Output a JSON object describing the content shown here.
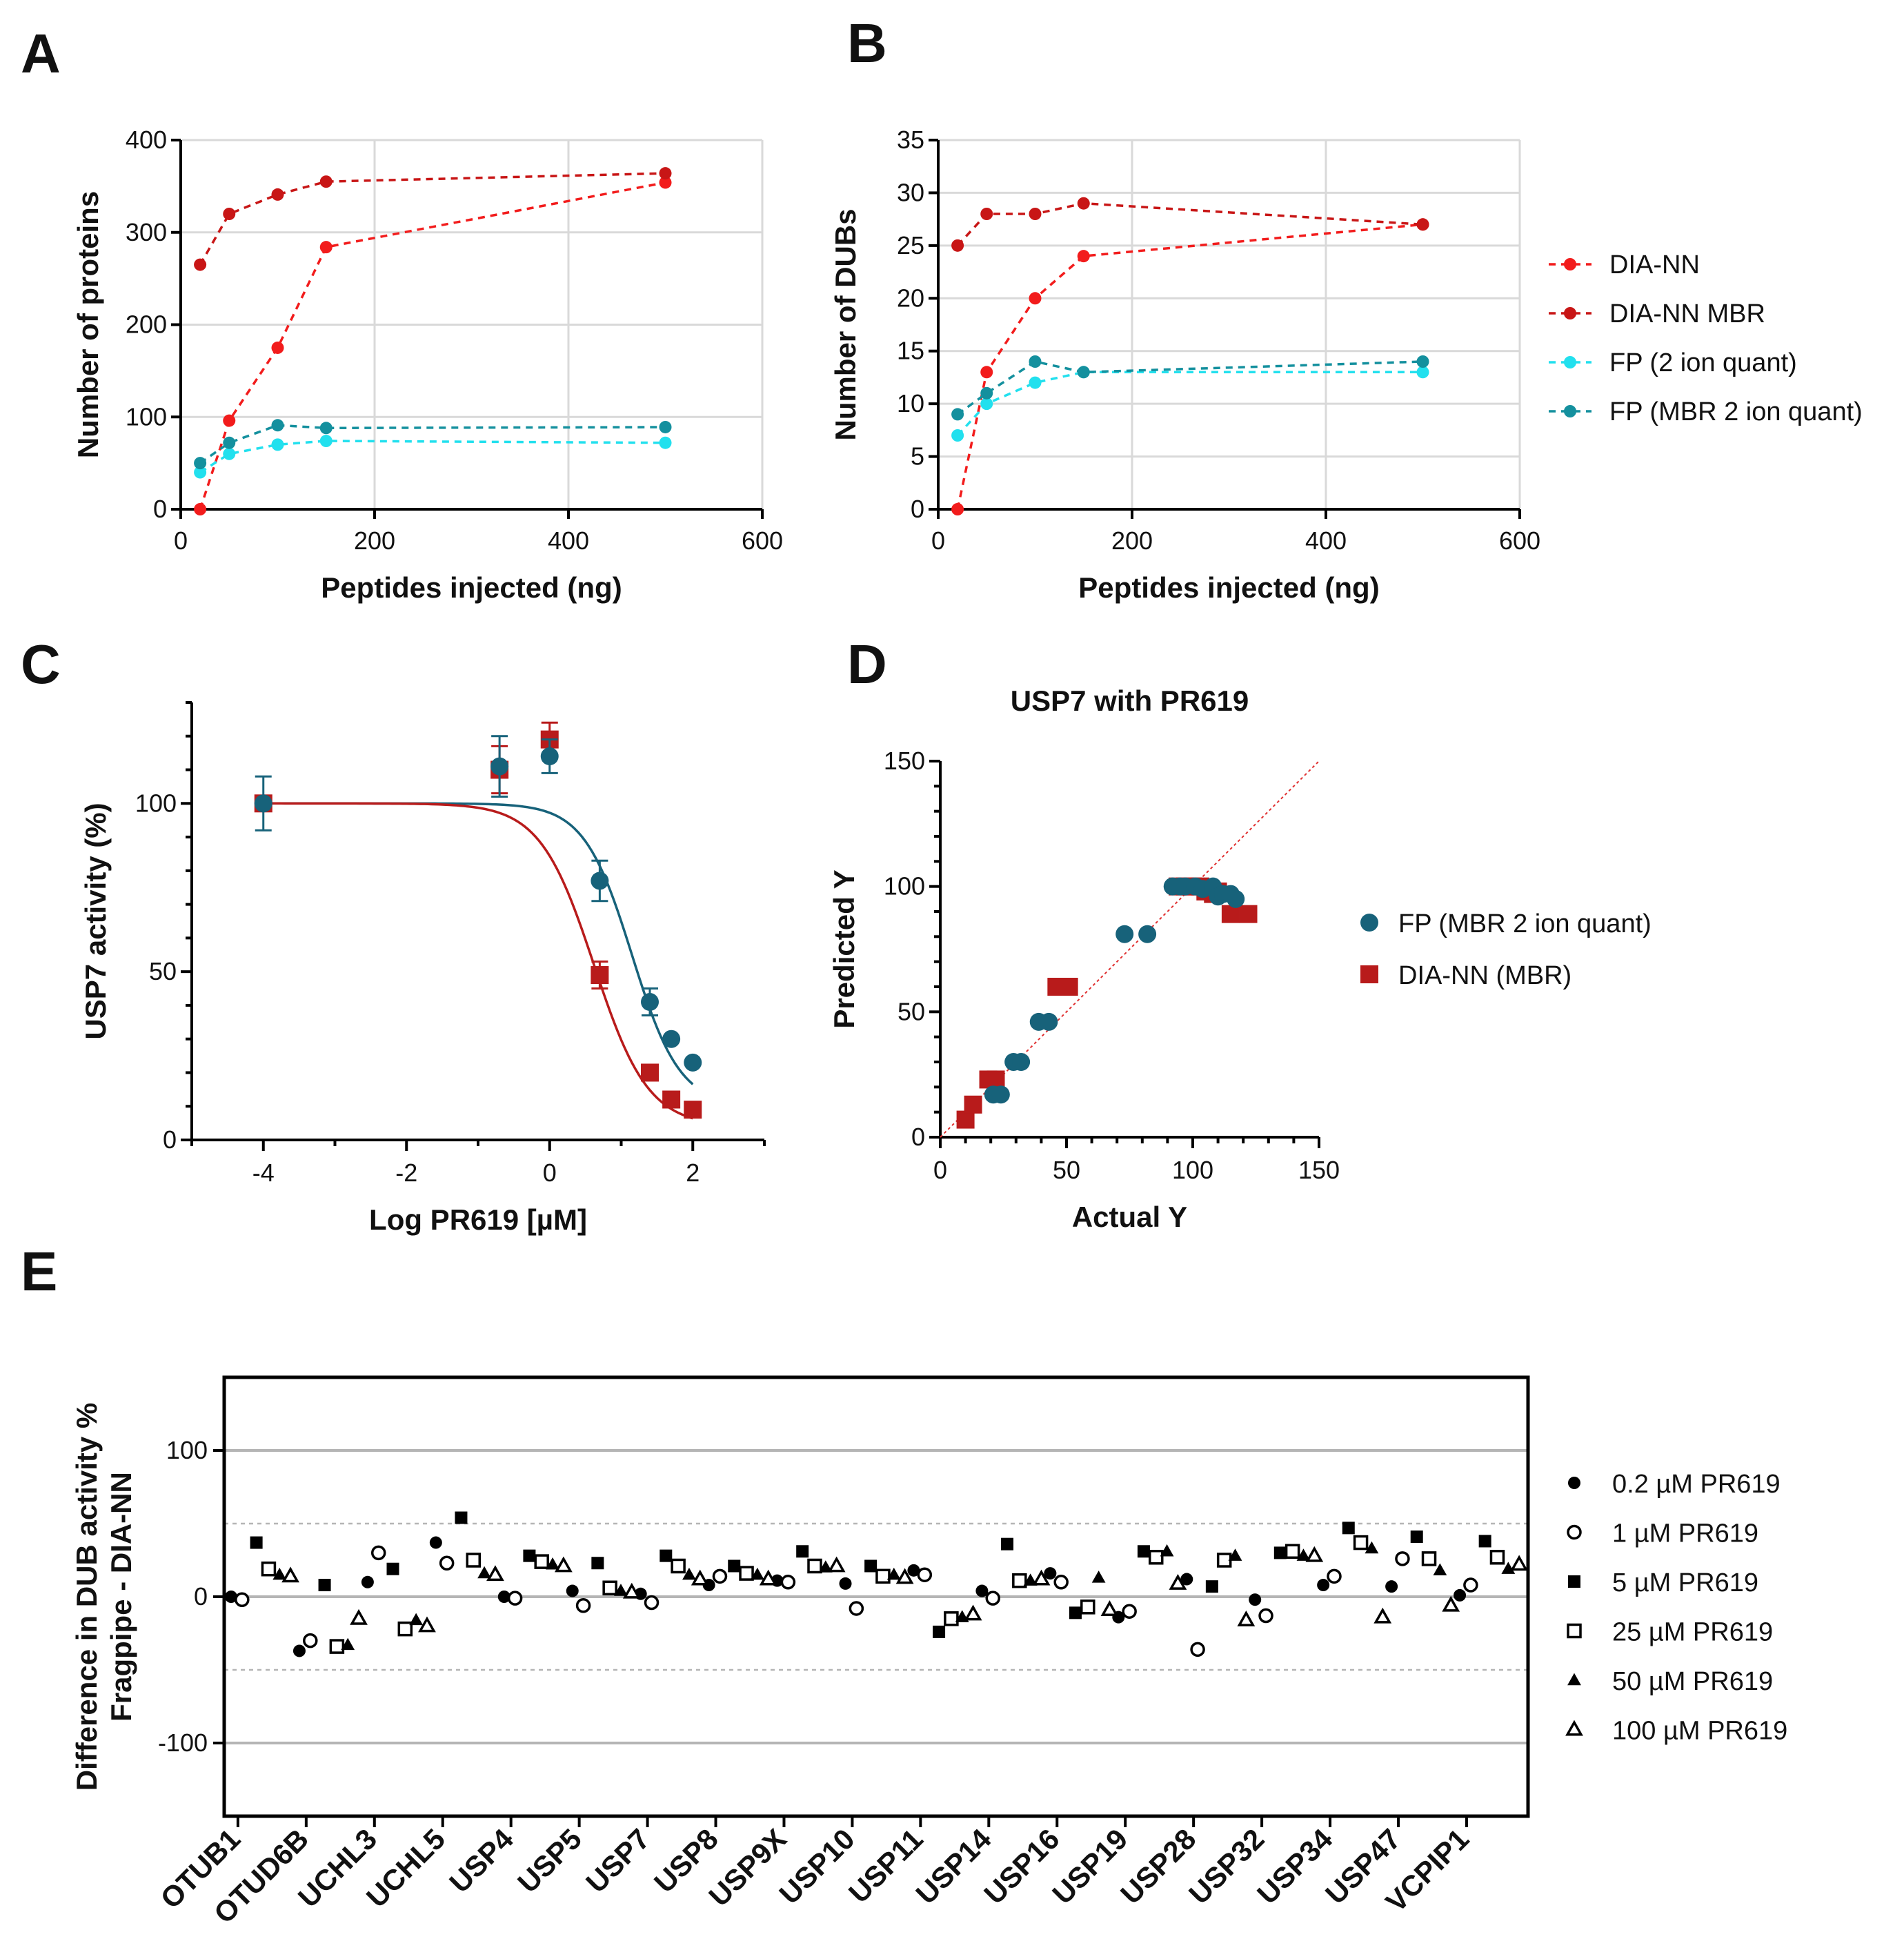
{
  "panels": {
    "A": "A",
    "B": "B",
    "C": "C",
    "D": "D",
    "E": "E"
  },
  "chart_data": [
    {
      "type": "line",
      "panel": "A",
      "title": "",
      "xlabel": "Peptides injected (ng)",
      "ylabel": "Number of proteins",
      "xlim": [
        0,
        600
      ],
      "ylim": [
        0,
        400
      ],
      "xticks": [
        0,
        200,
        400,
        600
      ],
      "yticks": [
        0,
        100,
        200,
        300,
        400
      ],
      "grid": true,
      "series": [
        {
          "name": "DIA-NN",
          "color": "#f21c1c",
          "x": [
            20,
            50,
            100,
            150,
            500
          ],
          "y": [
            0,
            96,
            175,
            284,
            354
          ]
        },
        {
          "name": "DIA-NN MBR",
          "color": "#c81616",
          "x": [
            20,
            50,
            100,
            150,
            500
          ],
          "y": [
            265,
            320,
            341,
            355,
            364
          ]
        },
        {
          "name": "FP (2 ion quant)",
          "color": "#22e0ee",
          "x": [
            20,
            50,
            100,
            150,
            500
          ],
          "y": [
            40,
            60,
            70,
            74,
            72
          ]
        },
        {
          "name": "FP (MBR 2 ion quant)",
          "color": "#14909e",
          "x": [
            20,
            50,
            100,
            150,
            500
          ],
          "y": [
            50,
            72,
            91,
            88,
            89
          ]
        }
      ]
    },
    {
      "type": "line",
      "panel": "B",
      "title": "",
      "xlabel": "Peptides injected (ng)",
      "ylabel": "Number of  DUBs",
      "xlim": [
        0,
        600
      ],
      "ylim": [
        0,
        35
      ],
      "xticks": [
        0,
        200,
        400,
        600
      ],
      "yticks": [
        0,
        5,
        10,
        15,
        20,
        25,
        30,
        35
      ],
      "grid": true,
      "legend": [
        "DIA-NN",
        "DIA-NN MBR",
        "FP (2 ion quant)",
        "FP (MBR 2 ion quant)"
      ],
      "series": [
        {
          "name": "DIA-NN",
          "color": "#f21c1c",
          "x": [
            20,
            50,
            100,
            150,
            500
          ],
          "y": [
            0,
            13,
            20,
            24,
            27
          ]
        },
        {
          "name": "DIA-NN MBR",
          "color": "#c81616",
          "x": [
            20,
            50,
            100,
            150,
            500
          ],
          "y": [
            25,
            28,
            28,
            29,
            27
          ]
        },
        {
          "name": "FP (2 ion quant)",
          "color": "#22e0ee",
          "x": [
            20,
            50,
            100,
            150,
            500
          ],
          "y": [
            7,
            10,
            12,
            13,
            13
          ]
        },
        {
          "name": "FP (MBR 2 ion quant)",
          "color": "#14909e",
          "x": [
            20,
            50,
            100,
            150,
            500
          ],
          "y": [
            9,
            11,
            14,
            13,
            14
          ]
        }
      ]
    },
    {
      "type": "scatter",
      "panel": "C",
      "title": "",
      "xlabel": "Log PR619 [µM]",
      "ylabel": "USP7 activity (%)",
      "xlim": [
        -5,
        3
      ],
      "ylim": [
        0,
        130
      ],
      "xticks": [
        -4,
        -2,
        0,
        2
      ],
      "yticks": [
        0,
        50,
        100
      ],
      "grid": false,
      "series": [
        {
          "name": "FP (MBR 2 ion quant)",
          "color": "#17627a",
          "marker": "circle",
          "x": [
            -4,
            -0.7,
            0,
            0.7,
            1.4,
            1.7,
            2.0
          ],
          "y": [
            100,
            111,
            114,
            77,
            41,
            30,
            23
          ],
          "err": [
            8,
            9,
            5,
            6,
            4,
            0,
            0
          ],
          "fit": {
            "top": 100,
            "bottom": 10,
            "logIC50": 1.15,
            "hill": -1.3
          }
        },
        {
          "name": "DIA-NN (MBR)",
          "color": "#b81b1b",
          "marker": "square",
          "x": [
            -4,
            -0.7,
            0,
            0.7,
            1.4,
            1.7,
            2.0
          ],
          "y": [
            100,
            110,
            119,
            49,
            20,
            12,
            9
          ],
          "err": [
            0,
            7,
            5,
            4,
            0,
            0,
            0
          ],
          "fit": {
            "top": 100,
            "bottom": 4,
            "logIC50": 0.62,
            "hill": -1.15
          }
        }
      ]
    },
    {
      "type": "scatter",
      "panel": "D",
      "title": "USP7 with PR619",
      "xlabel": "Actual Y",
      "ylabel": "Predicted Y",
      "xlim": [
        0,
        150
      ],
      "ylim": [
        0,
        150
      ],
      "xticks": [
        0,
        50,
        100,
        150
      ],
      "yticks": [
        0,
        50,
        100,
        150
      ],
      "grid": false,
      "identity_line": [
        0,
        150
      ],
      "legend": [
        "FP (MBR 2 ion quant)",
        "DIA-NN (MBR)"
      ],
      "series": [
        {
          "name": "FP (MBR 2 ion quant)",
          "color": "#17627a",
          "marker": "circle",
          "x": [
            21,
            24,
            29,
            32,
            39,
            43,
            73,
            82,
            92,
            95,
            97,
            101,
            104,
            108,
            110,
            112,
            115,
            117
          ],
          "y": [
            17,
            17,
            30,
            30,
            46,
            46,
            81,
            81,
            100,
            100,
            100,
            100,
            99,
            100,
            96,
            97,
            97,
            95
          ]
        },
        {
          "name": "DIA-NN (MBR)",
          "color": "#b81b1b",
          "marker": "square",
          "x": [
            10,
            13,
            19,
            22,
            46,
            51,
            94,
            97,
            100,
            103,
            105,
            108,
            110,
            115,
            122
          ],
          "y": [
            7,
            13,
            23,
            23,
            60,
            60,
            100,
            100,
            100,
            100,
            98,
            97,
            98,
            89,
            89
          ]
        }
      ]
    },
    {
      "type": "scatter",
      "panel": "E",
      "title": "",
      "xlabel": "",
      "ylabel": "Difference in DUB activity %",
      "ylabel2": "Fragpipe - DIA-NN",
      "ylim": [
        -150,
        150
      ],
      "yticks": [
        -100,
        0,
        100
      ],
      "dashed_lines": [
        -50,
        50
      ],
      "grid": true,
      "categories": [
        "OTUB1",
        "OTUD6B",
        "UCHL3",
        "UCHL5",
        "USP4",
        "USP5",
        "USP7",
        "USP8",
        "USP9X",
        "USP10",
        "USP11",
        "USP14",
        "USP16",
        "USP19",
        "USP28",
        "USP32",
        "USP34",
        "USP47",
        "VCPIP1"
      ],
      "series": [
        {
          "name": "0.2 µM PR619",
          "marker": "filled-circle",
          "values": [
            0,
            -37,
            10,
            37,
            0,
            4,
            2,
            8,
            11,
            9,
            18,
            4,
            16,
            -14,
            12,
            -2,
            8,
            7,
            1
          ]
        },
        {
          "name": "1 µM PR619",
          "marker": "open-circle",
          "values": [
            -2,
            -30,
            30,
            23,
            -1,
            -6,
            -4,
            14,
            10,
            -8,
            15,
            -1,
            10,
            -10,
            -36,
            -13,
            14,
            26,
            8
          ]
        },
        {
          "name": "5 µM PR619",
          "marker": "filled-square",
          "values": [
            37,
            8,
            19,
            54,
            28,
            23,
            28,
            21,
            31,
            21,
            -24,
            36,
            -11,
            31,
            7,
            30,
            47,
            41,
            38
          ]
        },
        {
          "name": "25 µM PR619",
          "marker": "open-square",
          "values": [
            19,
            -34,
            -22,
            25,
            24,
            6,
            21,
            16,
            21,
            14,
            -15,
            11,
            -7,
            27,
            25,
            31,
            37,
            26,
            27
          ]
        },
        {
          "name": "50 µM PR619",
          "marker": "filled-triangle",
          "values": [
            15,
            -33,
            -16,
            16,
            22,
            4,
            15,
            15,
            20,
            15,
            -14,
            11,
            13,
            31,
            28,
            28,
            33,
            18,
            19
          ]
        },
        {
          "name": "100 µM PR619",
          "marker": "open-triangle",
          "values": [
            14,
            -15,
            -20,
            15,
            21,
            3,
            12,
            12,
            21,
            13,
            -12,
            12,
            -9,
            9,
            -16,
            28,
            -14,
            -6,
            22
          ]
        }
      ]
    }
  ]
}
